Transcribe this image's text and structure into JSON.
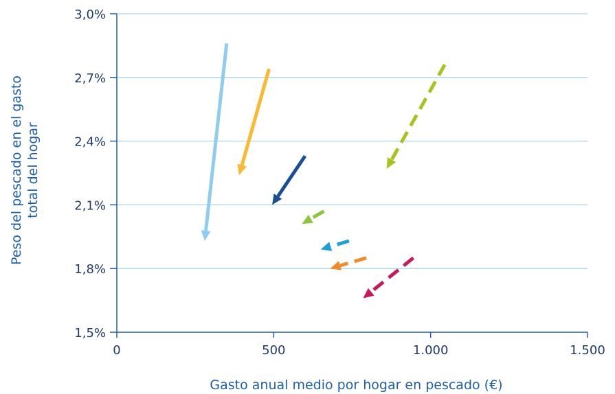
{
  "chart_data": {
    "type": "line",
    "xlabel": "Gasto anual medio por hogar en pescado (€)",
    "ylabel_lines": [
      "Peso del pescado en el gasto",
      "total del hogar"
    ],
    "xlim": [
      0,
      1500
    ],
    "ylim": [
      1.5,
      3.0
    ],
    "x_ticks": [
      0,
      500,
      1000,
      1500
    ],
    "x_tick_labels": [
      "0",
      "500",
      "1.000",
      "1.500"
    ],
    "y_ticks": [
      1.5,
      1.8,
      2.1,
      2.4,
      2.7,
      3.0
    ],
    "y_tick_labels": [
      "1,5%",
      "1,8%",
      "2,1%",
      "2,4%",
      "2,7%",
      "3,0%"
    ],
    "grid": "horizontal",
    "colors": {
      "axis": "#1f5fa8",
      "grid": "#a9d4ea",
      "tick_text": "#1f3a6b"
    },
    "series": [
      {
        "color": "#8fcdee",
        "dashed": false,
        "x": [
          350,
          280
        ],
        "y": [
          2.86,
          1.93
        ]
      },
      {
        "color": "#fbb931",
        "dashed": false,
        "x": [
          485,
          390
        ],
        "y": [
          2.74,
          2.24
        ]
      },
      {
        "color": "#1a4f96",
        "dashed": false,
        "x": [
          600,
          495
        ],
        "y": [
          2.33,
          2.1
        ]
      },
      {
        "color": "#a8c21e",
        "dashed": true,
        "x": [
          1045,
          860
        ],
        "y": [
          2.76,
          2.27
        ]
      },
      {
        "color": "#8cc63f",
        "dashed": true,
        "x": [
          660,
          590
        ],
        "y": [
          2.07,
          2.01
        ]
      },
      {
        "color": "#1ea0db",
        "dashed": true,
        "x": [
          740,
          650
        ],
        "y": [
          1.93,
          1.89
        ]
      },
      {
        "color": "#f18a2a",
        "dashed": true,
        "x": [
          795,
          680
        ],
        "y": [
          1.85,
          1.8
        ]
      },
      {
        "color": "#c7195c",
        "dashed": true,
        "x": [
          945,
          785
        ],
        "y": [
          1.85,
          1.66
        ]
      }
    ]
  }
}
